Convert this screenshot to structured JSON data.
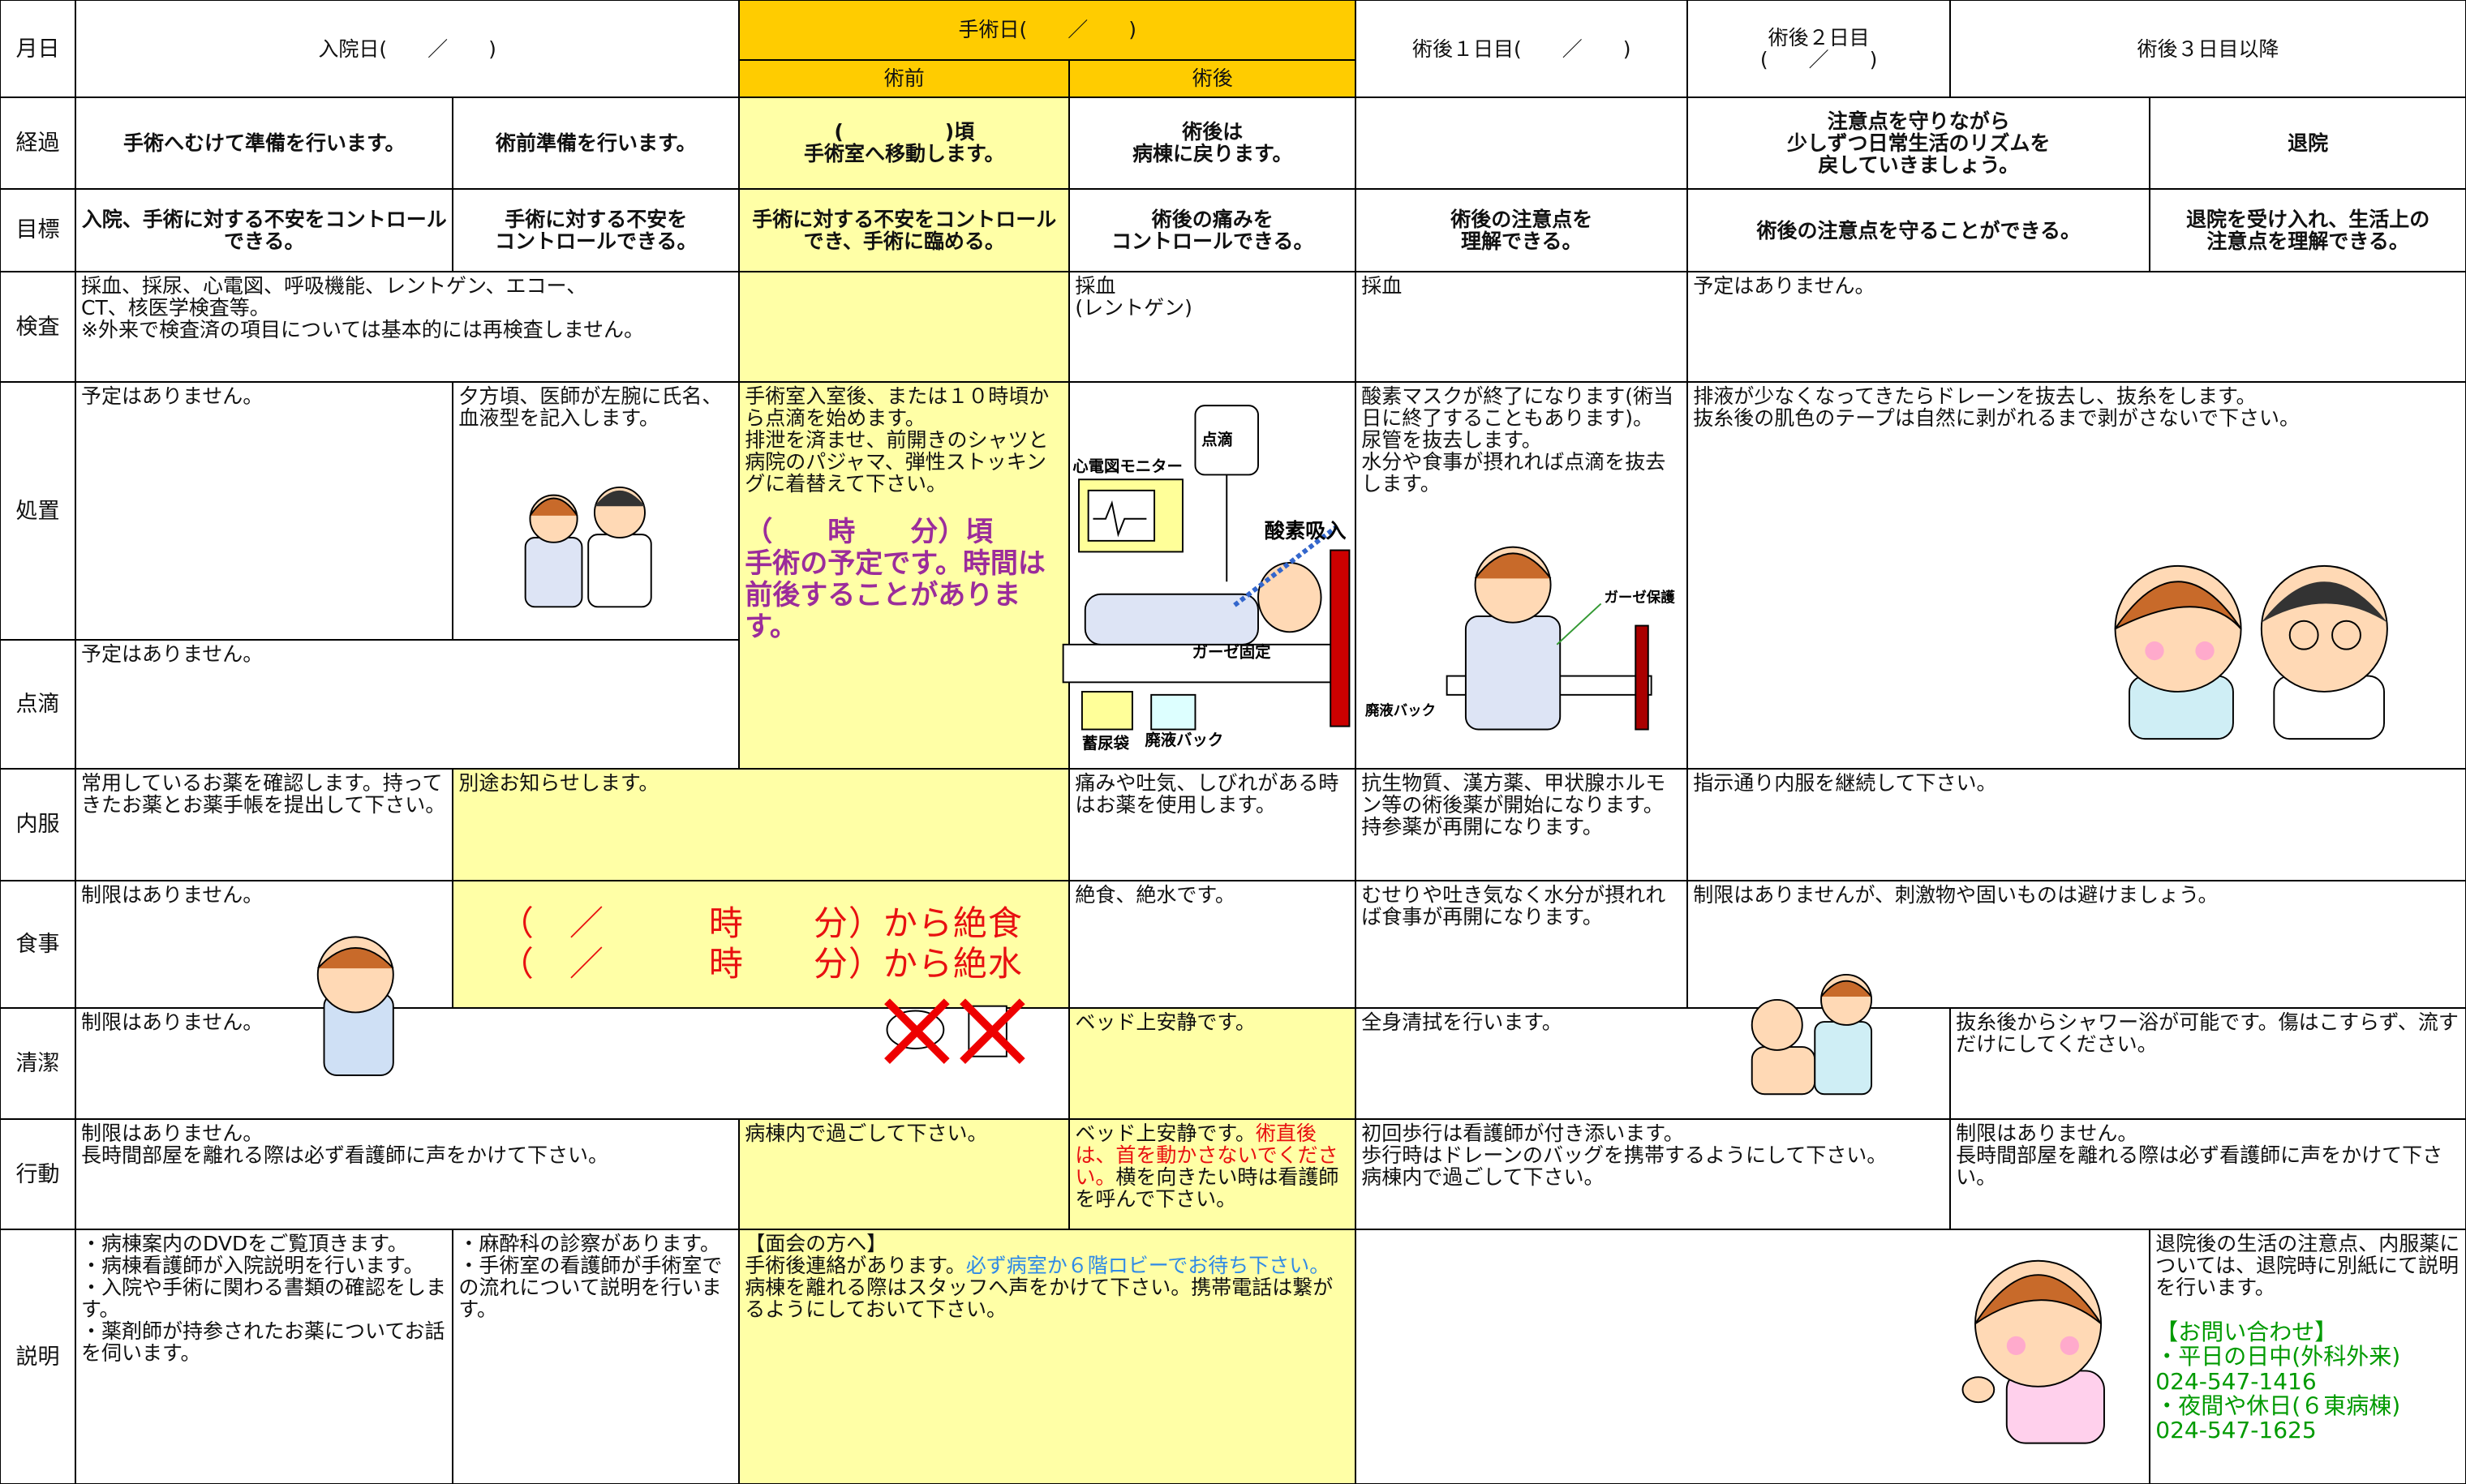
{
  "rows": [
    {
      "label": "月日",
      "cells": [
        "入院日(　　／　　)",
        "手術日(　　／　　)",
        "術前",
        "術後",
        "術後１日目(　　／　　)",
        "術後２日目\n(　　／　　)",
        "術後３日目以降"
      ]
    },
    {
      "label": "経過",
      "cells": [
        "手術へむけて準備を行います。",
        "術前準備を行います。",
        "(　　　　　)頃\n手術室へ移動します。",
        "術後は\n病棟に戻ります。",
        "注意点を守りながら\n少しずつ日常生活のリズムを\n戻していきましょう。",
        "退院"
      ]
    },
    {
      "label": "目標",
      "cells": [
        "入院、手術に対する不安をコントロールできる。",
        "手術に対する不安を\nコントロールできる。",
        "手術に対する不安をコントロールでき、手術に臨める。",
        "術後の痛みを\nコントロールできる。",
        "術後の注意点を\n理解できる。",
        "術後の注意点を守ることができる。",
        "退院を受け入れ、生活上の\n注意点を理解できる。"
      ]
    },
    {
      "label": "検査",
      "cells": [
        "採血、採尿、心電図、呼吸機能、レントゲン、エコー、\nCT、核医学検査等。\n※外来で検査済の項目については基本的には再検査しません。",
        "採血\n(レントゲン)",
        "採血",
        "予定はありません。"
      ]
    },
    {
      "label": "処置",
      "cells": [
        "予定はありません。",
        "夕方頃、医師が左腕に氏名、血液型を記入します。",
        [
          "手術室入室後、または１０時頃から点滴を始めます。\n排泄を済ませ、前開きのシャツと病院のパジャマ、弾性ストッキングに着替えて下さい。\n\n",
          "（　　時　　分）頃\n手術の予定です。時間は前後することがあります。"
        ],
        "酸素マスクが終了になります(術当日に終了することもあります)。\n尿管を抜去します。\n水分や食事が摂れれば点滴を抜去します。",
        "排液が少なくなってきたらドレーンを抜去し、抜糸をします。\n抜糸後の肌色のテープは自然に剥がれるまで剥がさないで下さい。"
      ]
    },
    {
      "label": "点滴",
      "cells": [
        "予定はありません。"
      ]
    },
    {
      "label": "内服",
      "cells": [
        "常用しているお薬を確認します。持ってきたお薬とお薬手帳を提出して下さい。",
        "別途お知らせします。",
        "痛みや吐気、しびれがある時はお薬を使用します。",
        "抗生物質、漢方薬、甲状腺ホルモン等の術後薬が開始になります。\n持参薬が再開になります。",
        "指示通り内服を継続して下さい。"
      ]
    },
    {
      "label": "食事",
      "cells": [
        "制限はありません。",
        "（　／　　　時　　分）から絶食\n（　／　　　時　　分）から絶水",
        "絶食、絶水です。",
        "むせりや吐き気なく水分が摂れれば食事が再開になります。",
        "制限はありませんが、刺激物や固いものは避けましょう。"
      ]
    },
    {
      "label": "清潔",
      "cells": [
        "制限はありません。",
        "ベッド上安静です。",
        "全身清拭を行います。",
        "抜糸後からシャワー浴が可能です。傷はこすらず、流すだけにしてください。"
      ]
    },
    {
      "label": "行動",
      "cells": [
        "制限はありません。\n長時間部屋を離れる際は必ず看護師に声をかけて下さい。",
        "病棟内で過ごして下さい。",
        [
          "ベッド上安静です。",
          "術直後は、首を動かさないでください。",
          "横を向きたい時は看護師を呼んで下さい。"
        ],
        "初回歩行は看護師が付き添います。\n歩行時はドレーンのバッグを携帯するようにして下さい。\n病棟内で過ごして下さい。",
        "制限はありません。\n長時間部屋を離れる際は必ず看護師に声をかけて下さい。"
      ]
    },
    {
      "label": "説明",
      "cells": [
        "・病棟案内のDVDをご覧頂きます。\n・病棟看護師が入院説明を行います。\n・入院や手術に関わる書類の確認をします。\n・薬剤師が持参されたお薬についてお話を伺います。",
        "・麻酔科の診察があります。\n・手術室の看護師が手術室での流れについて説明を行います。",
        [
          "【面会の方へ】\n手術後連絡があります。",
          "必ず病室か６階ロビーでお待ち下さい。",
          "\n病棟を離れる際はスタッフへ声をかけて下さい。携帯電話は繋がるようにしておいて下さい。"
        ],
        [
          "退院後の生活の注意点、内服薬については、退院時に別紙にて説明を行います。\n\n",
          "【お問い合わせ】\n・平日の日中(外科外来)\n024-547-1416\n・夜間や休日(６東病棟)\n024-547-1625"
        ]
      ]
    }
  ],
  "illustrations": [
    "心電図モニター",
    "点滴",
    "酸素吸入",
    "ガーゼ固定",
    "蓄尿袋",
    "廃液バック",
    "ガーゼ保護",
    "廃液バック"
  ]
}
